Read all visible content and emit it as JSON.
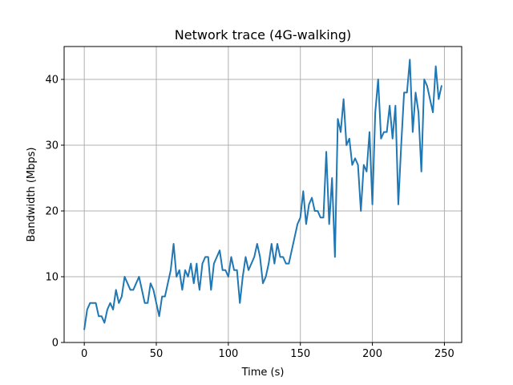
{
  "chart_data": {
    "type": "line",
    "title": "Network trace (4G-walking)",
    "xlabel": "Time (s)",
    "ylabel": "Bandwidth (Mbps)",
    "xlim": [
      -14,
      262
    ],
    "ylim": [
      0,
      45
    ],
    "xticks": [
      0,
      50,
      100,
      150,
      200,
      250
    ],
    "yticks": [
      0,
      10,
      20,
      30,
      40
    ],
    "grid": true,
    "colors": {
      "line": "#1f77b4",
      "grid": "#b0b0b0",
      "axes": "#000000"
    },
    "series": [
      {
        "x": [
          0,
          1,
          2,
          3,
          4,
          5,
          6,
          7,
          8,
          9,
          10,
          11,
          12,
          13,
          14,
          15,
          16,
          17,
          18,
          19,
          20,
          21,
          22,
          23,
          24,
          25,
          26,
          27,
          28,
          29,
          30,
          31,
          32,
          33,
          34,
          35,
          36,
          37,
          38,
          39,
          40,
          41,
          42,
          43,
          44,
          45,
          46,
          47,
          48,
          49,
          50,
          51,
          52,
          53,
          54,
          55,
          56,
          57,
          58,
          59,
          60,
          61,
          62,
          63,
          64,
          65,
          66,
          67,
          68,
          69,
          70,
          71,
          72,
          73,
          74,
          75,
          76,
          77,
          78,
          79,
          80,
          81,
          82,
          83,
          84,
          85,
          86,
          87,
          88,
          89,
          90,
          91,
          92,
          93,
          94,
          95,
          96,
          97,
          98,
          99,
          100,
          101,
          102,
          103,
          104,
          105,
          106,
          107,
          108,
          109,
          110,
          111,
          112,
          113,
          114,
          115,
          116,
          117,
          118,
          119,
          120,
          121,
          122,
          123,
          124,
          125,
          126,
          127,
          128,
          129,
          130,
          131,
          132,
          133,
          134,
          135,
          136,
          137,
          138,
          139,
          140,
          141,
          142,
          143,
          144,
          145,
          146,
          147,
          148,
          149,
          150,
          151,
          152,
          153,
          154,
          155,
          156,
          157,
          158,
          159,
          160,
          161,
          162,
          163,
          164,
          165,
          166,
          167,
          168,
          169,
          170,
          171,
          172,
          173,
          174,
          175,
          176,
          177,
          178,
          179,
          180,
          181,
          182,
          183,
          184,
          185,
          186,
          187,
          188,
          189,
          190,
          191,
          192,
          193,
          194,
          195,
          196,
          197,
          198,
          199,
          200,
          201,
          202,
          203,
          204,
          205,
          206,
          207,
          208,
          209,
          210,
          211,
          212,
          213,
          214,
          215,
          216,
          217,
          218,
          219,
          220,
          221,
          222,
          223,
          224,
          225,
          226,
          227,
          228,
          229,
          230,
          231,
          232,
          233,
          234,
          235,
          236,
          237,
          238,
          239,
          240,
          241,
          242,
          243,
          244,
          245,
          246,
          247,
          248
        ],
        "y": [
          2,
          3.5,
          5,
          5.5,
          6,
          6,
          6,
          6,
          6,
          5,
          4,
          4,
          4,
          3.5,
          3,
          4,
          5,
          5.5,
          6,
          5.5,
          5,
          6.5,
          8,
          7,
          6,
          6.5,
          7,
          8.5,
          10,
          9.5,
          9,
          8.5,
          8,
          8,
          8,
          8.5,
          9,
          9.5,
          10,
          9,
          8,
          7,
          6,
          6,
          6,
          7.5,
          9,
          8.5,
          8,
          7,
          6,
          5,
          4,
          5.5,
          7,
          7,
          7,
          8,
          9,
          10,
          11,
          13,
          15,
          12.5,
          10,
          10.5,
          11,
          9.5,
          8,
          9.5,
          11,
          10.5,
          10,
          11,
          12,
          10.5,
          9,
          10.5,
          12,
          9.5,
          8,
          10,
          12,
          12.5,
          13,
          13,
          13,
          10.5,
          8,
          10,
          12,
          12.5,
          13,
          13.5,
          14,
          12.5,
          11,
          11,
          11,
          10.5,
          10,
          11.5,
          13,
          12,
          11,
          11,
          11,
          8.5,
          6,
          8,
          10,
          11.5,
          13,
          12,
          11,
          11.5,
          12,
          12.5,
          13,
          14,
          15,
          14,
          13,
          11,
          9,
          9.5,
          10,
          11,
          12,
          13.5,
          15,
          13.5,
          12,
          13.5,
          15,
          14,
          13,
          13,
          13,
          12.5,
          12,
          12,
          12,
          13,
          14,
          15,
          16,
          17,
          18,
          18.5,
          19,
          21,
          23,
          20.5,
          18,
          19.5,
          21,
          21.5,
          22,
          21,
          20,
          20,
          20,
          19.5,
          19,
          19,
          19,
          24,
          29,
          23.5,
          18,
          21.5,
          25,
          19,
          13,
          23.5,
          34,
          33,
          32,
          34.5,
          37,
          33.5,
          30,
          30.5,
          31,
          29,
          27,
          27.5,
          28,
          27.5,
          27,
          23.5,
          20,
          23.5,
          27,
          26.5,
          26,
          29,
          32,
          26.5,
          21,
          28,
          35,
          37.5,
          40,
          35.5,
          31,
          31.5,
          32,
          32,
          32,
          34,
          36,
          33.5,
          31,
          33.5,
          36,
          28.5,
          21,
          25.5,
          30,
          34,
          38,
          38,
          38,
          40.5,
          43,
          37.5,
          32,
          35,
          38,
          36.5,
          35,
          30.5,
          26,
          33,
          40,
          39.5,
          39,
          38,
          37,
          36,
          35,
          38.5,
          42,
          39.5,
          37,
          38,
          39
        ]
      }
    ]
  }
}
